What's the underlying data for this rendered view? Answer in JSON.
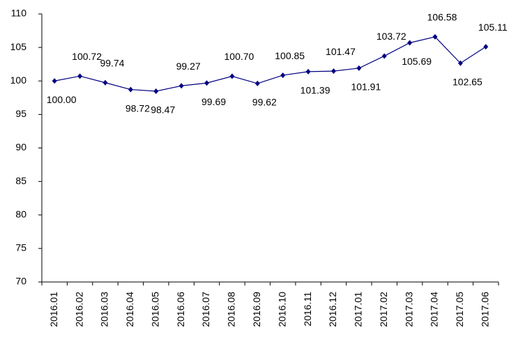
{
  "chart_data": {
    "type": "line",
    "categories": [
      "2016.01",
      "2016.02",
      "2016.03",
      "2016.04",
      "2016.05",
      "2016.06",
      "2016.07",
      "2016.08",
      "2016.09",
      "2016.10",
      "2016.11",
      "2016.12",
      "2017.01",
      "2017.02",
      "2017.03",
      "2017.04",
      "2017.05",
      "2017.06"
    ],
    "values": [
      100.0,
      100.72,
      99.74,
      98.72,
      98.47,
      99.27,
      99.69,
      100.7,
      99.62,
      100.85,
      101.39,
      101.47,
      101.91,
      103.72,
      105.69,
      106.58,
      102.65,
      105.11
    ],
    "value_labels": [
      "100.00",
      "100.72",
      "99.74",
      "98.72",
      "98.47",
      "99.27",
      "99.69",
      "100.70",
      "99.62",
      "100.85",
      "101.39",
      "101.47",
      "101.91",
      "103.72",
      "105.69",
      "106.58",
      "102.65",
      "105.11"
    ],
    "color": "#000080",
    "ylim": [
      70,
      110
    ],
    "yticks": [
      70,
      75,
      80,
      85,
      90,
      95,
      100,
      105,
      110
    ],
    "grid": false
  }
}
